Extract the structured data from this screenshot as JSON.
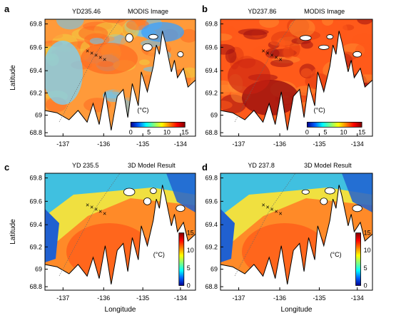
{
  "panels": [
    {
      "letter": "a",
      "title_left": "YD235.46",
      "title_right": "MODIS Image",
      "kind": "modis",
      "palette": [
        "#ff9a3a",
        "#ff6a20",
        "#f0d040",
        "#60c8ff"
      ],
      "colorbar": {
        "orientation": "horizontal",
        "ticks": [
          "0",
          "5",
          "10",
          "15"
        ],
        "unit": "(°C)"
      },
      "show_ylabel": true,
      "show_xlabel": false
    },
    {
      "letter": "b",
      "title_left": "YD237.86",
      "title_right": "MODIS Image",
      "kind": "modis",
      "palette": [
        "#ff5a1a",
        "#e03a10",
        "#ff8a30",
        "#a01010"
      ],
      "colorbar": {
        "orientation": "horizontal",
        "ticks": [
          "0",
          "5",
          "10",
          "15"
        ],
        "unit": "(°C)"
      },
      "show_ylabel": false,
      "show_xlabel": false
    },
    {
      "letter": "c",
      "title_left": "YD 235.5",
      "title_right": "3D Model Result",
      "kind": "model",
      "palette": [
        "#ff5a18",
        "#ff8a28",
        "#f0e040",
        "#40c0e0",
        "#2060d0"
      ],
      "colorbar": {
        "orientation": "vertical",
        "ticks": [
          "15",
          "10",
          "5",
          "0"
        ],
        "unit": "(°C)"
      },
      "show_ylabel": true,
      "show_xlabel": true
    },
    {
      "letter": "d",
      "title_left": "YD 237.8",
      "title_right": "3D Model Result",
      "kind": "model",
      "palette": [
        "#ff5a18",
        "#ff8a28",
        "#f0e040",
        "#40c0e0",
        "#2060d0"
      ],
      "colorbar": {
        "orientation": "vertical",
        "ticks": [
          "15",
          "10",
          "5",
          "0"
        ],
        "unit": "(°C)"
      },
      "show_ylabel": false,
      "show_xlabel": true
    }
  ],
  "axes": {
    "ylabel": "Latitude",
    "xlabel": "Longitude",
    "y_ticks": [
      "69.8",
      "69.6",
      "69.4",
      "69.2",
      "69",
      "68.8"
    ],
    "x_ticks": [
      "-137",
      "-136",
      "-135",
      "-134"
    ]
  },
  "colors": {
    "land": "#ffffff",
    "coast": "#000000",
    "colorbar_stops": [
      "#00008f",
      "#0060ff",
      "#00ffff",
      "#80ff80",
      "#ffff00",
      "#ff8000",
      "#ff0000",
      "#800000"
    ]
  }
}
